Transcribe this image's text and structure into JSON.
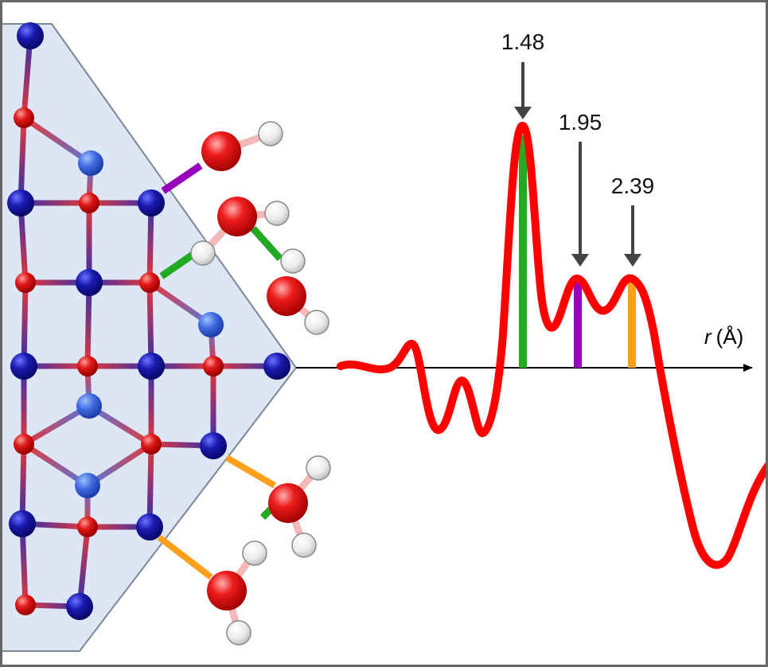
{
  "figure": {
    "axis_label": {
      "symbol": "r",
      "unit": "(Å)"
    },
    "peaks": [
      {
        "label": "1.48",
        "value": 1.48,
        "color": "#22aa22"
      },
      {
        "label": "1.95",
        "value": 1.95,
        "color": "#9900bb"
      },
      {
        "label": "2.39",
        "value": 2.39,
        "color": "#ff9f1a"
      }
    ],
    "colors": {
      "curve": "#ff0000",
      "surface_atom": "#1a1aaa",
      "surface_atom_light": "#4466dd",
      "oxygen": "#e02020",
      "hydrogen": "#f0f0f0",
      "panel_fill": "#dce6f5",
      "frame": "#666666"
    }
  }
}
